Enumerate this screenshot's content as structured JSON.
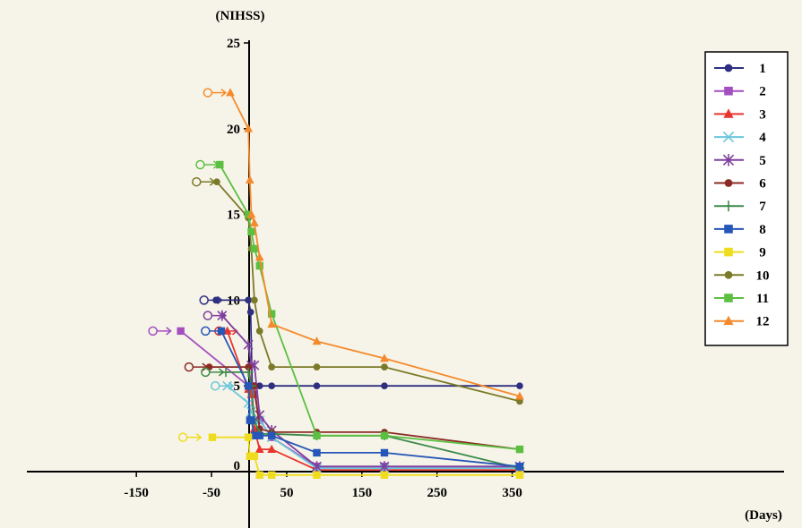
{
  "chart_data": {
    "type": "line",
    "ylabel": "(NIHSS)",
    "xlabel": "(Days)",
    "xlim": [
      -150,
      365
    ],
    "ylim": [
      0,
      25
    ],
    "x_ticks": [
      -150,
      -50,
      50,
      150,
      250,
      350
    ],
    "x_tick_labels": [
      "-150",
      "-50",
      "50",
      "150",
      "250",
      "350"
    ],
    "y_ticks": [
      0,
      5,
      10,
      15,
      20,
      25
    ],
    "y_tick_labels": [
      "0",
      "5",
      "10",
      "15",
      "20",
      "25"
    ],
    "legend_position": "right",
    "grid": false,
    "series": [
      {
        "name": "1",
        "color": "#2e2f80",
        "marker": "dot",
        "points": [
          [
            -44,
            10
          ],
          [
            -1,
            10
          ],
          [
            2,
            9.3
          ],
          [
            4,
            5
          ],
          [
            7,
            5
          ],
          [
            14,
            5
          ],
          [
            30,
            5
          ],
          [
            90,
            5
          ],
          [
            180,
            5
          ],
          [
            360,
            5
          ]
        ],
        "start_marker": [
          -60,
          10
        ]
      },
      {
        "name": "2",
        "color": "#a44fc0",
        "marker": "square",
        "points": [
          [
            -91,
            8.2
          ],
          [
            -1,
            5
          ],
          [
            3,
            5
          ],
          [
            7,
            4.5
          ],
          [
            14,
            3
          ],
          [
            30,
            2
          ],
          [
            90,
            0.3
          ],
          [
            180,
            0.3
          ],
          [
            360,
            0.3
          ]
        ],
        "start_marker": [
          -128,
          8.2
        ]
      },
      {
        "name": "3",
        "color": "#e8352e",
        "marker": "triangle",
        "points": [
          [
            -29,
            8.2
          ],
          [
            -1,
            4.8
          ],
          [
            3,
            4.5
          ],
          [
            7,
            2.5
          ],
          [
            14,
            1.3
          ],
          [
            30,
            1.3
          ],
          [
            90,
            0.1
          ],
          [
            180,
            0.1
          ],
          [
            360,
            0.1
          ]
        ],
        "start_marker": [
          -40,
          8.2
        ]
      },
      {
        "name": "4",
        "color": "#6cc6dc",
        "marker": "x",
        "points": [
          [
            -29,
            5
          ],
          [
            -1,
            4
          ],
          [
            3,
            3.5
          ],
          [
            7,
            3
          ],
          [
            14,
            3
          ],
          [
            30,
            2
          ],
          [
            90,
            0.2
          ],
          [
            180,
            0.2
          ],
          [
            360,
            0.2
          ]
        ],
        "start_marker": [
          -45,
          5
        ]
      },
      {
        "name": "5",
        "color": "#7f3f9e",
        "marker": "star",
        "points": [
          [
            -36,
            9.1
          ],
          [
            -1,
            7.4
          ],
          [
            3,
            6.2
          ],
          [
            7,
            6.2
          ],
          [
            14,
            3.3
          ],
          [
            30,
            2.4
          ],
          [
            90,
            0.3
          ],
          [
            180,
            0.3
          ],
          [
            360,
            0.3
          ]
        ],
        "start_marker": [
          -55,
          9.1
        ]
      },
      {
        "name": "6",
        "color": "#8b2a24",
        "marker": "dot",
        "points": [
          [
            -53,
            6.1
          ],
          [
            -1,
            6.1
          ],
          [
            3,
            5
          ],
          [
            7,
            5
          ],
          [
            14,
            2.5
          ],
          [
            30,
            2.3
          ],
          [
            90,
            2.3
          ],
          [
            180,
            2.3
          ],
          [
            360,
            1.3
          ]
        ],
        "start_marker": [
          -80,
          6.1
        ]
      },
      {
        "name": "7",
        "color": "#3d8a4a",
        "marker": "plus",
        "points": [
          [
            -31,
            5.8
          ],
          [
            -1,
            5.8
          ],
          [
            3,
            5
          ],
          [
            7,
            3
          ],
          [
            14,
            2.2
          ],
          [
            30,
            2.2
          ],
          [
            90,
            2.1
          ],
          [
            180,
            2.1
          ],
          [
            360,
            0.2
          ]
        ],
        "start_marker": [
          -58,
          5.8
        ]
      },
      {
        "name": "8",
        "color": "#2656b8",
        "marker": "square",
        "points": [
          [
            -37,
            8.2
          ],
          [
            -1,
            5
          ],
          [
            1,
            3
          ],
          [
            3,
            3
          ],
          [
            7,
            2.1
          ],
          [
            14,
            2.1
          ],
          [
            30,
            2.1
          ],
          [
            90,
            1.1
          ],
          [
            180,
            1.1
          ],
          [
            360,
            0.3
          ]
        ],
        "start_marker": [
          -58,
          8.2
        ]
      },
      {
        "name": "9",
        "color": "#f0dc1e",
        "marker": "square",
        "points": [
          [
            -49,
            2
          ],
          [
            -1,
            2
          ],
          [
            1,
            0.9
          ],
          [
            3,
            0.9
          ],
          [
            7,
            0.9
          ],
          [
            14,
            -0.2
          ],
          [
            30,
            -0.2
          ],
          [
            90,
            -0.2
          ],
          [
            180,
            -0.2
          ],
          [
            360,
            -0.2
          ]
        ],
        "start_marker": [
          -88,
          2
        ]
      },
      {
        "name": "10",
        "color": "#7b7a28",
        "marker": "dot",
        "points": [
          [
            -43,
            16.9
          ],
          [
            -1,
            14.8
          ],
          [
            3,
            13
          ],
          [
            7,
            10
          ],
          [
            14,
            8.2
          ],
          [
            30,
            6.1
          ],
          [
            90,
            6.1
          ],
          [
            180,
            6.1
          ],
          [
            360,
            4.1
          ]
        ],
        "start_marker": [
          -70,
          16.9
        ]
      },
      {
        "name": "11",
        "color": "#5cbf42",
        "marker": "square",
        "points": [
          [
            -39,
            17.9
          ],
          [
            -1,
            15
          ],
          [
            3,
            14
          ],
          [
            7,
            13
          ],
          [
            14,
            12
          ],
          [
            30,
            9.2
          ],
          [
            90,
            2.1
          ],
          [
            180,
            2.1
          ],
          [
            360,
            1.3
          ]
        ],
        "start_marker": [
          -65,
          17.9
        ]
      },
      {
        "name": "12",
        "color": "#f58a2c",
        "marker": "triangle",
        "points": [
          [
            -25,
            22.1
          ],
          [
            -1,
            20
          ],
          [
            1,
            17
          ],
          [
            3,
            15
          ],
          [
            7,
            14.5
          ],
          [
            14,
            12.5
          ],
          [
            30,
            8.6
          ],
          [
            90,
            7.6
          ],
          [
            180,
            6.6
          ],
          [
            360,
            4.4
          ]
        ],
        "start_marker": [
          -55,
          22.1
        ]
      }
    ]
  }
}
